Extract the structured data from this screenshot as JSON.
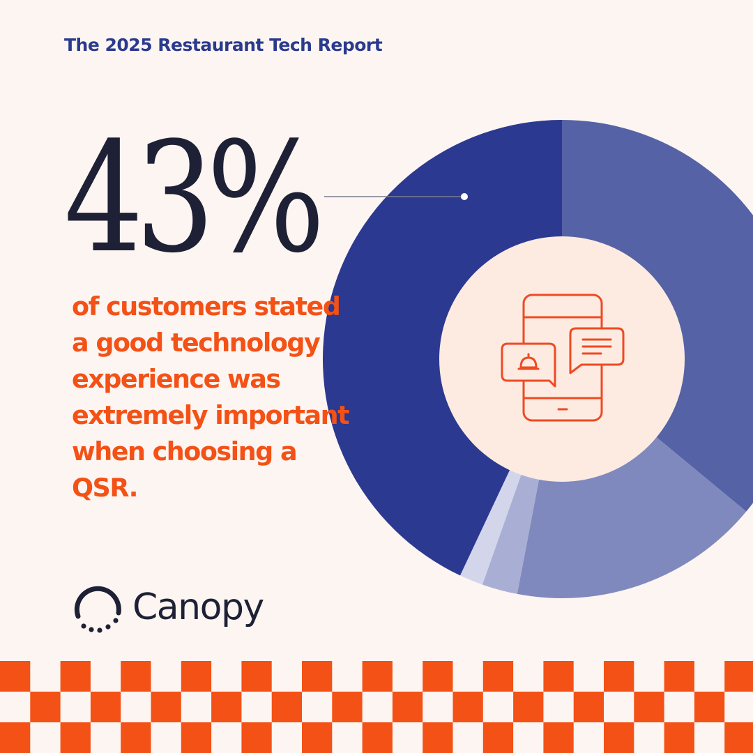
{
  "header": {
    "title": "The 2025 Restaurant Tech Report"
  },
  "stat": {
    "value": "43%",
    "description": "of customers stated a good technology experience was extremely important when choosing a QSR."
  },
  "brand": {
    "name": "Canopy",
    "logo_icon": "canopy-logo-icon"
  },
  "center_icon": "phone-notification-icon",
  "colors": {
    "background": "#fdf5f1",
    "accent_orange": "#f45116",
    "title_blue": "#2a3a8f",
    "text_dark": "#1e2135",
    "donut_center": "#fdebe1"
  },
  "chart_data": {
    "type": "pie",
    "title": "",
    "highlighted_segment": 0,
    "segments": [
      {
        "value": 43,
        "color": "#2b3990"
      },
      {
        "value": 36,
        "color": "#5562a6"
      },
      {
        "value": 17,
        "color": "#7f89bd"
      },
      {
        "value": 2.4,
        "color": "#a9afd4"
      },
      {
        "value": 1.6,
        "color": "#d3d6eb"
      }
    ]
  }
}
